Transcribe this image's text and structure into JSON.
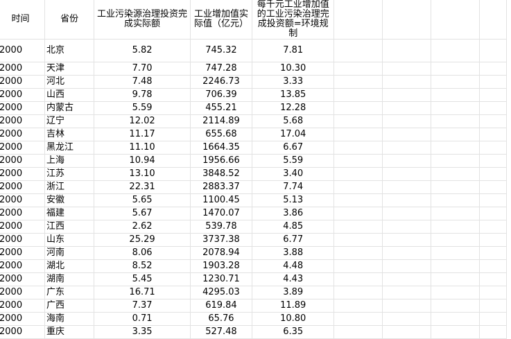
{
  "headers": [
    "时间",
    "省份",
    "工业污染源治理投资完成实际额",
    "工业增加值实际值（亿元）",
    "每千元工业增加值的工业污染治理完成投资额=环境规制"
  ],
  "rows": [
    [
      "2000",
      "北京",
      "5.82",
      "745.32",
      "7.81"
    ],
    [
      "2000",
      "天津",
      "7.70",
      "747.28",
      "10.30"
    ],
    [
      "2000",
      "河北",
      "7.48",
      "2246.73",
      "3.33"
    ],
    [
      "2000",
      "山西",
      "9.78",
      "706.39",
      "13.85"
    ],
    [
      "2000",
      "内蒙古",
      "5.59",
      "455.21",
      "12.28"
    ],
    [
      "2000",
      "辽宁",
      "12.02",
      "2114.89",
      "5.68"
    ],
    [
      "2000",
      "吉林",
      "11.17",
      "655.68",
      "17.04"
    ],
    [
      "2000",
      "黑龙江",
      "11.10",
      "1664.35",
      "6.67"
    ],
    [
      "2000",
      "上海",
      "10.94",
      "1956.66",
      "5.59"
    ],
    [
      "2000",
      "江苏",
      "13.10",
      "3848.52",
      "3.40"
    ],
    [
      "2000",
      "浙江",
      "22.31",
      "2883.37",
      "7.74"
    ],
    [
      "2000",
      "安徽",
      "5.65",
      "1100.45",
      "5.13"
    ],
    [
      "2000",
      "福建",
      "5.67",
      "1470.07",
      "3.86"
    ],
    [
      "2000",
      "江西",
      "2.62",
      "539.78",
      "4.85"
    ],
    [
      "2000",
      "山东",
      "25.29",
      "3737.38",
      "6.77"
    ],
    [
      "2000",
      "河南",
      "8.06",
      "2078.94",
      "3.88"
    ],
    [
      "2000",
      "湖北",
      "8.52",
      "1903.28",
      "4.48"
    ],
    [
      "2000",
      "湖南",
      "5.45",
      "1230.71",
      "4.43"
    ],
    [
      "2000",
      "广东",
      "16.71",
      "4295.03",
      "3.89"
    ],
    [
      "2000",
      "广西",
      "7.37",
      "619.84",
      "11.89"
    ],
    [
      "2000",
      "海南",
      "0.71",
      "65.76",
      "10.80"
    ],
    [
      "2000",
      "重庆",
      "3.35",
      "527.48",
      "6.35"
    ]
  ]
}
